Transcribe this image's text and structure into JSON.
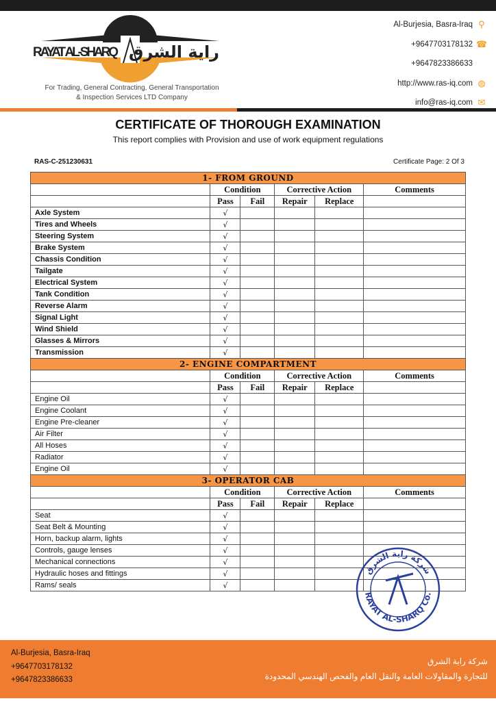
{
  "header": {
    "logo_text_en": "RAYAT AL-SHARQ",
    "logo_text_ar": "راية الشرق",
    "tagline_1": "For Trading, General Contracting, General Transportation",
    "tagline_2": "& Inspection Services LTD Company",
    "contacts": [
      {
        "text": "Al-Burjesia, Basra-Iraq",
        "icon": "location-pin-icon"
      },
      {
        "text": "+9647703178132",
        "icon": "telephone-icon"
      },
      {
        "text": "+9647823386633",
        "icon": ""
      },
      {
        "text": "http://www.ras-iq.com",
        "icon": "globe-icon"
      },
      {
        "text": "info@ras-iq.com",
        "icon": "envelope-icon"
      }
    ]
  },
  "document": {
    "title": "CERTIFICATE OF THOROUGH EXAMINATION",
    "subtitle": "This report complies with Provision and use of work equipment regulations",
    "reference": "RAS-C-251230631",
    "page": "Certificate Page: 2 Of 3"
  },
  "columns": {
    "condition": "Condition",
    "corrective": "Corrective Action",
    "comments": "Comments",
    "pass": "Pass",
    "fail": "Fail",
    "repair": "Repair",
    "replace": "Replace"
  },
  "check_mark": "√",
  "sections": [
    {
      "title": "1-  FROM GROUND",
      "bold_items": true,
      "items": [
        {
          "name": "Axle System",
          "result": "pass"
        },
        {
          "name": "Tires and Wheels",
          "result": "pass"
        },
        {
          "name": "Steering System",
          "result": "pass"
        },
        {
          "name": "Brake System",
          "result": "pass"
        },
        {
          "name": "Chassis Condition",
          "result": "pass"
        },
        {
          "name": "Tailgate",
          "result": "pass"
        },
        {
          "name": "Electrical System",
          "result": "pass"
        },
        {
          "name": "Tank Condition",
          "result": "pass"
        },
        {
          "name": "Reverse Alarm",
          "result": "pass"
        },
        {
          "name": "Signal Light",
          "result": "pass"
        },
        {
          "name": "Wind Shield",
          "result": "pass"
        },
        {
          "name": "Glasses & Mirrors",
          "result": "pass"
        },
        {
          "name": "Transmission",
          "result": "pass"
        }
      ]
    },
    {
      "title": "2-  ENGINE COMPARTMENT",
      "bold_items": false,
      "items": [
        {
          "name": "Engine Oil",
          "result": "pass"
        },
        {
          "name": "Engine Coolant",
          "result": "pass"
        },
        {
          "name": "Engine Pre-cleaner",
          "result": "pass"
        },
        {
          "name": "Air Filter",
          "result": "pass"
        },
        {
          "name": "All Hoses",
          "result": "pass"
        },
        {
          "name": "Radiator",
          "result": "pass"
        },
        {
          "name": "Engine Oil",
          "result": "pass"
        }
      ]
    },
    {
      "title": "3-  OPERATOR CAB",
      "bold_items": false,
      "items": [
        {
          "name": "Seat",
          "result": "pass"
        },
        {
          "name": "Seat Belt & Mounting",
          "result": "pass"
        },
        {
          "name": "Horn, backup alarm, lights",
          "result": "pass"
        },
        {
          "name": "Controls, gauge lenses",
          "result": "pass"
        },
        {
          "name": "Mechanical connections",
          "result": "pass"
        },
        {
          "name": "Hydraulic hoses and fittings",
          "result": "pass"
        },
        {
          "name": "Rams/ seals",
          "result": "pass"
        }
      ]
    }
  ],
  "stamp": {
    "text": "RAYAT AL-SHARQ Co.",
    "text_ar": "شركة راية الشرق",
    "color": "#2a3f9e"
  },
  "footer": {
    "address": "Al-Burjesia, Basra-Iraq",
    "phone_1": "+9647703178132",
    "phone_2": "+9647823386633",
    "ar_line_1": "شركة راية الشرق",
    "ar_line_2": "للتجارة والمقاولات العامة والنقل العام والفحص الهندسي المحدودة"
  },
  "colors": {
    "accent": "#ef7d31",
    "section_header": "#f79646",
    "dark": "#1d1d1d"
  }
}
